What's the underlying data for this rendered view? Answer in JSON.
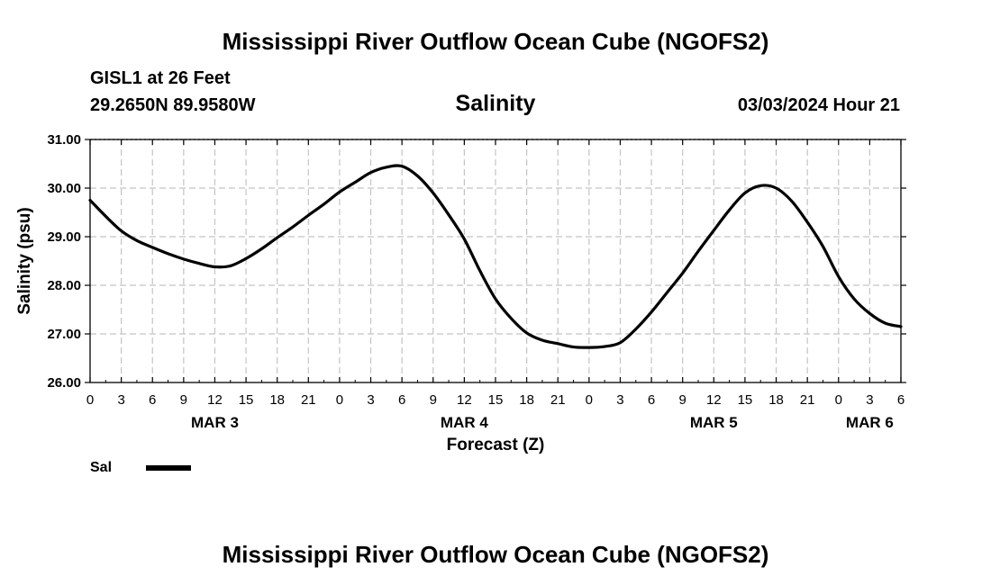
{
  "header": {
    "title": "Mississippi River Outflow Ocean Cube (NGOFS2)",
    "station": "GISL1 at 26 Feet",
    "coords": "29.2650N  89.9580W",
    "variable": "Salinity",
    "datetime": "03/03/2024 Hour 21"
  },
  "footer": {
    "title": "Mississippi River Outflow Ocean Cube (NGOFS2)"
  },
  "legend": {
    "label": "Sal"
  },
  "chart_data": {
    "type": "line",
    "title": "Salinity",
    "xlabel": "Forecast (Z)",
    "ylabel": "Salinity (psu)",
    "ylim": [
      26.0,
      31.0
    ],
    "y_ticks": [
      "26.00",
      "27.00",
      "28.00",
      "29.00",
      "30.00",
      "31.00"
    ],
    "y_tick_values": [
      26,
      27,
      28,
      29,
      30,
      31
    ],
    "xlim_hours": [
      0,
      78
    ],
    "x_tick_labels": [
      "0",
      "3",
      "6",
      "9",
      "12",
      "15",
      "18",
      "21",
      "0",
      "3",
      "6",
      "9",
      "12",
      "15",
      "18",
      "21",
      "0",
      "3",
      "6",
      "9",
      "12",
      "15",
      "18",
      "21",
      "0",
      "3",
      "6"
    ],
    "day_labels": [
      {
        "label": "MAR 3",
        "hour": 12
      },
      {
        "label": "MAR 4",
        "hour": 36
      },
      {
        "label": "MAR 5",
        "hour": 60
      },
      {
        "label": "MAR 6",
        "hour": 75
      }
    ],
    "grid": true,
    "series": [
      {
        "name": "Sal",
        "color": "#000000",
        "x_hours": [
          0,
          1.5,
          3,
          4.5,
          6,
          7.5,
          9,
          10.5,
          12,
          13.5,
          15,
          16.5,
          18,
          19.5,
          21,
          22.5,
          24,
          25.5,
          27,
          28.5,
          30,
          31.5,
          33,
          34.5,
          36,
          37.5,
          39,
          40.5,
          42,
          43.5,
          45,
          46.5,
          48,
          49.5,
          51,
          52.5,
          54,
          55.5,
          57,
          58.5,
          60,
          61.5,
          63,
          64.5,
          66,
          67.5,
          69,
          70.5,
          72,
          73.5,
          75,
          76.5,
          78
        ],
        "values": [
          29.75,
          29.42,
          29.12,
          28.92,
          28.78,
          28.65,
          28.54,
          28.45,
          28.38,
          28.4,
          28.55,
          28.75,
          28.98,
          29.2,
          29.44,
          29.67,
          29.92,
          30.12,
          30.32,
          30.43,
          30.45,
          30.25,
          29.9,
          29.45,
          28.95,
          28.3,
          27.72,
          27.32,
          27.02,
          26.87,
          26.8,
          26.73,
          26.72,
          26.74,
          26.82,
          27.1,
          27.45,
          27.85,
          28.25,
          28.7,
          29.13,
          29.55,
          29.9,
          30.05,
          30.0,
          29.73,
          29.3,
          28.8,
          28.18,
          27.72,
          27.42,
          27.22,
          27.15
        ]
      }
    ]
  }
}
